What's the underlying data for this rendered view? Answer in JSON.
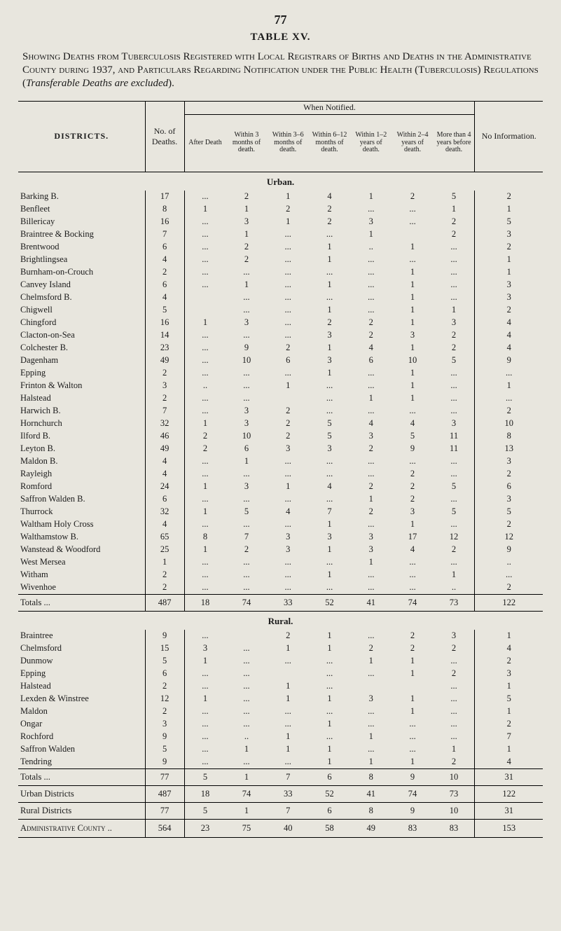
{
  "page_number": "77",
  "table_label": "TABLE XV.",
  "title_html": "S<span class='sc'>howing</span> D<span class='sc'>eaths from</span> T<span class='sc'>uberculosis</span> R<span class='sc'>egistered with</span> L<span class='sc'>ocal</span> R<span class='sc'>egistrars of</span> B<span class='sc'>irths and</span> D<span class='sc'>eaths in the</span> A<span class='sc'>dministrative</span> C<span class='sc'>ounty during</span> 1937, <span class='sc'>and</span> P<span class='sc'>articulars</span> R<span class='sc'>egarding</span> N<span class='sc'>otification under the</span> P<span class='sc'>ublic</span> H<span class='sc'>ealth</span> (T<span class='sc'>uberculosis</span>) R<span class='sc'>egulations</span> (<i>Transferable Deaths are excluded</i>).",
  "headers": {
    "districts": "DISTRICTS.",
    "no_deaths": "No. of Deaths.",
    "when_notified": "When Notified.",
    "no_info": "No Information.",
    "when_cols": [
      "After Death",
      "Within 3 months of death.",
      "Within 3–6 months of death.",
      "Within 6–12 months of death.",
      "Within 1–2 years of death.",
      "Within 2–4 years of death.",
      "More than 4 years before death."
    ]
  },
  "sections": [
    {
      "label": "Urban.",
      "rows": [
        {
          "name": "Barking B.",
          "v": [
            "17",
            "...",
            "2",
            "1",
            "4",
            "1",
            "2",
            "5",
            "2"
          ]
        },
        {
          "name": "Benfleet",
          "v": [
            "8",
            "1",
            "1",
            "2",
            "2",
            "...",
            "...",
            "1",
            "1"
          ]
        },
        {
          "name": "Billericay",
          "v": [
            "16",
            "...",
            "3",
            "1",
            "2",
            "3",
            "...",
            "2",
            "5"
          ]
        },
        {
          "name": "Braintree & Bocking",
          "v": [
            "7",
            "...",
            "1",
            "...",
            "...",
            "1",
            "",
            "2",
            "3"
          ]
        },
        {
          "name": "Brentwood",
          "v": [
            "6",
            "...",
            "2",
            "...",
            "1",
            "..",
            "1",
            "...",
            "2"
          ]
        },
        {
          "name": "Brightlingsea",
          "v": [
            "4",
            "...",
            "2",
            "...",
            "1",
            "...",
            "...",
            "...",
            "1"
          ]
        },
        {
          "name": "Burnham-on-Crouch",
          "v": [
            "2",
            "...",
            "...",
            "...",
            "...",
            "...",
            "1",
            "...",
            "1"
          ]
        },
        {
          "name": "Canvey Island",
          "v": [
            "6",
            "...",
            "1",
            "...",
            "1",
            "...",
            "1",
            "...",
            "3"
          ]
        },
        {
          "name": "Chelmsford B.",
          "v": [
            "4",
            "",
            "...",
            "...",
            "...",
            "...",
            "1",
            "...",
            "3"
          ]
        },
        {
          "name": "Chigwell",
          "v": [
            "5",
            "",
            "...",
            "...",
            "1",
            "...",
            "1",
            "1",
            "2"
          ]
        },
        {
          "name": "Chingford",
          "v": [
            "16",
            "1",
            "3",
            "...",
            "2",
            "2",
            "1",
            "3",
            "4"
          ]
        },
        {
          "name": "Clacton-on-Sea",
          "v": [
            "14",
            "...",
            "...",
            "...",
            "3",
            "2",
            "3",
            "2",
            "4"
          ]
        },
        {
          "name": "Colchester B.",
          "v": [
            "23",
            "...",
            "9",
            "2",
            "1",
            "4",
            "1",
            "2",
            "4"
          ]
        },
        {
          "name": "Dagenham",
          "v": [
            "49",
            "...",
            "10",
            "6",
            "3",
            "6",
            "10",
            "5",
            "9"
          ]
        },
        {
          "name": "Epping",
          "v": [
            "2",
            "...",
            "...",
            "...",
            "1",
            "...",
            "1",
            "...",
            "..."
          ]
        },
        {
          "name": "Frinton & Walton",
          "v": [
            "3",
            "..",
            "...",
            "1",
            "...",
            "...",
            "1",
            "...",
            "1"
          ]
        },
        {
          "name": "Halstead",
          "v": [
            "2",
            "...",
            "...",
            "",
            "...",
            "1",
            "1",
            "...",
            "..."
          ]
        },
        {
          "name": "Harwich B.",
          "v": [
            "7",
            "...",
            "3",
            "2",
            "...",
            "...",
            "...",
            "...",
            "2"
          ]
        },
        {
          "name": "Hornchurch",
          "v": [
            "32",
            "1",
            "3",
            "2",
            "5",
            "4",
            "4",
            "3",
            "10"
          ]
        },
        {
          "name": "Ilford B.",
          "v": [
            "46",
            "2",
            "10",
            "2",
            "5",
            "3",
            "5",
            "11",
            "8"
          ]
        },
        {
          "name": "Leyton B.",
          "v": [
            "49",
            "2",
            "6",
            "3",
            "3",
            "2",
            "9",
            "11",
            "13"
          ]
        },
        {
          "name": "Maldon B.",
          "v": [
            "4",
            "...",
            "1",
            "...",
            "...",
            "...",
            "...",
            "...",
            "3"
          ]
        },
        {
          "name": "Rayleigh",
          "v": [
            "4",
            "...",
            "...",
            "...",
            "...",
            "...",
            "2",
            "...",
            "2"
          ]
        },
        {
          "name": "Romford",
          "v": [
            "24",
            "1",
            "3",
            "1",
            "4",
            "2",
            "2",
            "5",
            "6"
          ]
        },
        {
          "name": "Saffron Walden B.",
          "v": [
            "6",
            "...",
            "...",
            "...",
            "...",
            "1",
            "2",
            "...",
            "3"
          ]
        },
        {
          "name": "Thurrock",
          "v": [
            "32",
            "1",
            "5",
            "4",
            "7",
            "2",
            "3",
            "5",
            "5"
          ]
        },
        {
          "name": "Waltham Holy Cross",
          "v": [
            "4",
            "...",
            "...",
            "...",
            "1",
            "...",
            "1",
            "...",
            "2"
          ]
        },
        {
          "name": "Walthamstow B.",
          "v": [
            "65",
            "8",
            "7",
            "3",
            "3",
            "3",
            "17",
            "12",
            "12"
          ]
        },
        {
          "name": "Wanstead & Woodford",
          "v": [
            "25",
            "1",
            "2",
            "3",
            "1",
            "3",
            "4",
            "2",
            "9"
          ]
        },
        {
          "name": "West Mersea",
          "v": [
            "1",
            "...",
            "...",
            "...",
            "...",
            "1",
            "...",
            "...",
            ".."
          ]
        },
        {
          "name": "Witham",
          "v": [
            "2",
            "...",
            "...",
            "...",
            "1",
            "...",
            "...",
            "1",
            "..."
          ]
        },
        {
          "name": "Wivenhoe",
          "v": [
            "2",
            "...",
            "...",
            "...",
            "...",
            "...",
            "...",
            "..",
            "2"
          ]
        }
      ],
      "total": {
        "name": "Totals ...",
        "v": [
          "487",
          "18",
          "74",
          "33",
          "52",
          "41",
          "74",
          "73",
          "122"
        ]
      }
    },
    {
      "label": "Rural.",
      "rows": [
        {
          "name": "Braintree",
          "v": [
            "9",
            "...",
            "",
            "2",
            "1",
            "...",
            "2",
            "3",
            "1"
          ]
        },
        {
          "name": "Chelmsford",
          "v": [
            "15",
            "3",
            "...",
            "1",
            "1",
            "2",
            "2",
            "2",
            "4"
          ]
        },
        {
          "name": "Dunmow",
          "v": [
            "5",
            "1",
            "...",
            "...",
            "...",
            "1",
            "1",
            "...",
            "2"
          ]
        },
        {
          "name": "Epping",
          "v": [
            "6",
            "...",
            "...",
            "",
            "...",
            "...",
            "1",
            "2",
            "3"
          ]
        },
        {
          "name": "Halstead",
          "v": [
            "2",
            "...",
            "...",
            "1",
            "...",
            "",
            "",
            "...",
            "1"
          ]
        },
        {
          "name": "Lexden & Winstree",
          "v": [
            "12",
            "1",
            "...",
            "1",
            "1",
            "3",
            "1",
            "...",
            "5"
          ]
        },
        {
          "name": "Maldon",
          "v": [
            "2",
            "...",
            "...",
            "...",
            "...",
            "...",
            "1",
            "...",
            "1"
          ]
        },
        {
          "name": "Ongar",
          "v": [
            "3",
            "...",
            "...",
            "...",
            "1",
            "...",
            "...",
            "...",
            "2"
          ]
        },
        {
          "name": "Rochford",
          "v": [
            "9",
            "...",
            "..",
            "1",
            "...",
            "1",
            "...",
            "...",
            "7"
          ]
        },
        {
          "name": "Saffron Walden",
          "v": [
            "5",
            "...",
            "1",
            "1",
            "1",
            "...",
            "...",
            "1",
            "1"
          ]
        },
        {
          "name": "Tendring",
          "v": [
            "9",
            "...",
            "...",
            "...",
            "1",
            "1",
            "1",
            "2",
            "4"
          ]
        }
      ],
      "total": {
        "name": "Totals ...",
        "v": [
          "77",
          "5",
          "1",
          "7",
          "6",
          "8",
          "9",
          "10",
          "31"
        ]
      }
    }
  ],
  "grand": [
    {
      "name": "Urban Districts",
      "v": [
        "487",
        "18",
        "74",
        "33",
        "52",
        "41",
        "74",
        "73",
        "122"
      ]
    },
    {
      "name": "Rural Districts",
      "v": [
        "77",
        "5",
        "1",
        "7",
        "6",
        "8",
        "9",
        "10",
        "31"
      ]
    },
    {
      "name": "Administrative County ..",
      "v": [
        "564",
        "23",
        "75",
        "40",
        "58",
        "49",
        "83",
        "83",
        "153"
      ]
    }
  ],
  "colors": {
    "background": "#e8e6de",
    "ink": "#1a1a1a",
    "rule": "#000000"
  }
}
